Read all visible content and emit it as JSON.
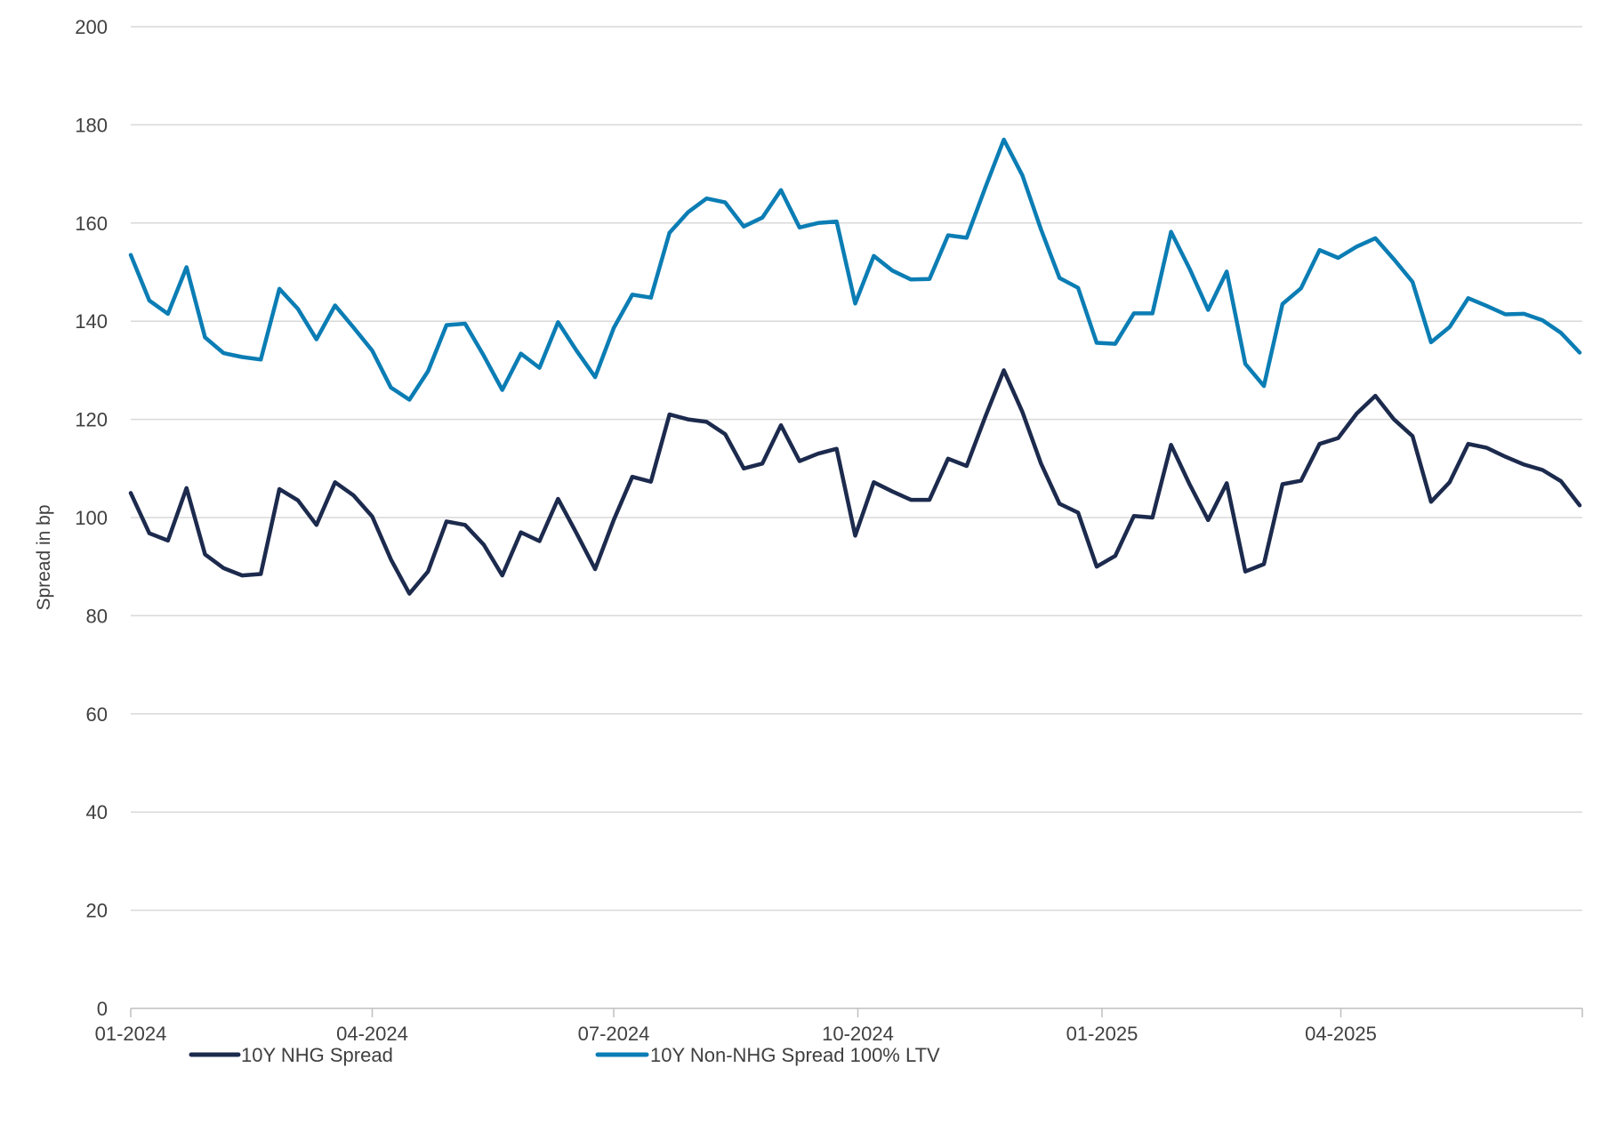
{
  "chart_data": {
    "type": "line",
    "title": "",
    "xlabel": "",
    "ylabel": "Spread in bp",
    "ylim": [
      0,
      200
    ],
    "y_ticks": [
      0,
      20,
      40,
      60,
      80,
      100,
      120,
      140,
      160,
      180,
      200
    ],
    "x_tick_labels": [
      "01-2024",
      "04-2024",
      "07-2024",
      "10-2024",
      "01-2025",
      "04-2025"
    ],
    "x_range": [
      "2024-01-01",
      "2025-07-01"
    ],
    "x_ticks": [
      "2024-01-01",
      "2024-04-01",
      "2024-07-01",
      "2024-10-01",
      "2025-01-01",
      "2025-04-01",
      "2025-07-01"
    ],
    "grid": true,
    "legend_position": "bottom",
    "series": [
      {
        "name": "10Y NHG Spread",
        "color": "#1c2a4d",
        "points": [
          [
            "2024-01-01",
            105.0
          ],
          [
            "2024-01-08",
            96.8
          ],
          [
            "2024-01-15",
            95.3
          ],
          [
            "2024-01-22",
            106.0
          ],
          [
            "2024-01-29",
            92.5
          ],
          [
            "2024-02-05",
            89.7
          ],
          [
            "2024-02-12",
            88.2
          ],
          [
            "2024-02-19",
            88.5
          ],
          [
            "2024-02-26",
            105.8
          ],
          [
            "2024-03-04",
            103.5
          ],
          [
            "2024-03-11",
            98.5
          ],
          [
            "2024-03-18",
            107.2
          ],
          [
            "2024-03-25",
            104.5
          ],
          [
            "2024-04-01",
            100.2
          ],
          [
            "2024-04-08",
            91.5
          ],
          [
            "2024-04-15",
            84.5
          ],
          [
            "2024-04-22",
            89.0
          ],
          [
            "2024-04-29",
            99.2
          ],
          [
            "2024-05-06",
            98.5
          ],
          [
            "2024-05-13",
            94.5
          ],
          [
            "2024-05-20",
            88.2
          ],
          [
            "2024-05-27",
            97.0
          ],
          [
            "2024-06-03",
            95.2
          ],
          [
            "2024-06-10",
            103.8
          ],
          [
            "2024-06-17",
            96.8
          ],
          [
            "2024-06-24",
            89.5
          ],
          [
            "2024-07-01",
            99.5
          ],
          [
            "2024-07-08",
            108.3
          ],
          [
            "2024-07-15",
            107.3
          ],
          [
            "2024-07-22",
            121.0
          ],
          [
            "2024-07-29",
            120.0
          ],
          [
            "2024-08-05",
            119.5
          ],
          [
            "2024-08-12",
            117.0
          ],
          [
            "2024-08-19",
            110.0
          ],
          [
            "2024-08-26",
            111.0
          ],
          [
            "2024-09-02",
            118.8
          ],
          [
            "2024-09-09",
            111.5
          ],
          [
            "2024-09-16",
            113.0
          ],
          [
            "2024-09-23",
            114.0
          ],
          [
            "2024-09-30",
            96.3
          ],
          [
            "2024-10-07",
            107.2
          ],
          [
            "2024-10-14",
            105.3
          ],
          [
            "2024-10-21",
            103.6
          ],
          [
            "2024-10-28",
            103.6
          ],
          [
            "2024-11-04",
            112.0
          ],
          [
            "2024-11-11",
            110.5
          ],
          [
            "2024-11-18",
            120.5
          ],
          [
            "2024-11-25",
            130.0
          ],
          [
            "2024-12-02",
            121.5
          ],
          [
            "2024-12-09",
            111.0
          ],
          [
            "2024-12-16",
            102.8
          ],
          [
            "2024-12-23",
            101.0
          ],
          [
            "2024-12-30",
            90.0
          ],
          [
            "2025-01-06",
            92.2
          ],
          [
            "2025-01-13",
            100.3
          ],
          [
            "2025-01-20",
            100.0
          ],
          [
            "2025-01-27",
            114.8
          ],
          [
            "2025-02-03",
            106.8
          ],
          [
            "2025-02-10",
            99.5
          ],
          [
            "2025-02-17",
            107.0
          ],
          [
            "2025-02-24",
            89.0
          ],
          [
            "2025-03-03",
            90.5
          ],
          [
            "2025-03-10",
            106.8
          ],
          [
            "2025-03-17",
            107.5
          ],
          [
            "2025-03-24",
            115.0
          ],
          [
            "2025-03-31",
            116.2
          ],
          [
            "2025-04-07",
            121.2
          ],
          [
            "2025-04-14",
            124.8
          ],
          [
            "2025-04-21",
            120.0
          ],
          [
            "2025-04-28",
            116.6
          ],
          [
            "2025-05-05",
            103.2
          ],
          [
            "2025-05-12",
            107.2
          ],
          [
            "2025-05-19",
            115.0
          ],
          [
            "2025-05-26",
            114.2
          ],
          [
            "2025-06-02",
            112.4
          ],
          [
            "2025-06-09",
            110.8
          ],
          [
            "2025-06-16",
            109.7
          ],
          [
            "2025-06-23",
            107.4
          ],
          [
            "2025-06-30",
            102.5
          ]
        ]
      },
      {
        "name": "10Y Non-NHG Spread 100% LTV",
        "color": "#0b7db4",
        "points": [
          [
            "2024-01-01",
            153.5
          ],
          [
            "2024-01-08",
            144.2
          ],
          [
            "2024-01-15",
            141.5
          ],
          [
            "2024-01-22",
            151.0
          ],
          [
            "2024-01-29",
            136.7
          ],
          [
            "2024-02-05",
            133.5
          ],
          [
            "2024-02-12",
            132.7
          ],
          [
            "2024-02-19",
            132.2
          ],
          [
            "2024-02-26",
            146.6
          ],
          [
            "2024-03-04",
            142.5
          ],
          [
            "2024-03-11",
            136.3
          ],
          [
            "2024-03-18",
            143.2
          ],
          [
            "2024-03-25",
            138.7
          ],
          [
            "2024-04-01",
            134.0
          ],
          [
            "2024-04-08",
            126.5
          ],
          [
            "2024-04-15",
            124.0
          ],
          [
            "2024-04-22",
            129.8
          ],
          [
            "2024-04-29",
            139.2
          ],
          [
            "2024-05-06",
            139.5
          ],
          [
            "2024-05-13",
            133.0
          ],
          [
            "2024-05-20",
            126.0
          ],
          [
            "2024-05-27",
            133.4
          ],
          [
            "2024-06-03",
            130.5
          ],
          [
            "2024-06-10",
            139.8
          ],
          [
            "2024-06-17",
            134.0
          ],
          [
            "2024-06-24",
            128.6
          ],
          [
            "2024-07-01",
            138.6
          ],
          [
            "2024-07-08",
            145.4
          ],
          [
            "2024-07-15",
            144.8
          ],
          [
            "2024-07-22",
            158.0
          ],
          [
            "2024-07-29",
            162.2
          ],
          [
            "2024-08-05",
            165.0
          ],
          [
            "2024-08-12",
            164.2
          ],
          [
            "2024-08-19",
            159.3
          ],
          [
            "2024-08-26",
            161.1
          ],
          [
            "2024-09-02",
            166.7
          ],
          [
            "2024-09-09",
            159.1
          ],
          [
            "2024-09-16",
            160.0
          ],
          [
            "2024-09-23",
            160.3
          ],
          [
            "2024-09-30",
            143.6
          ],
          [
            "2024-10-07",
            153.3
          ],
          [
            "2024-10-14",
            150.3
          ],
          [
            "2024-10-21",
            148.5
          ],
          [
            "2024-10-28",
            148.6
          ],
          [
            "2024-11-04",
            157.5
          ],
          [
            "2024-11-11",
            157.0
          ],
          [
            "2024-11-18",
            167.2
          ],
          [
            "2024-11-25",
            177.0
          ],
          [
            "2024-12-02",
            169.7
          ],
          [
            "2024-12-09",
            158.7
          ],
          [
            "2024-12-16",
            148.8
          ],
          [
            "2024-12-23",
            146.8
          ],
          [
            "2024-12-30",
            135.6
          ],
          [
            "2025-01-06",
            135.4
          ],
          [
            "2025-01-13",
            141.6
          ],
          [
            "2025-01-20",
            141.6
          ],
          [
            "2025-01-27",
            158.2
          ],
          [
            "2025-02-03",
            150.7
          ],
          [
            "2025-02-10",
            142.3
          ],
          [
            "2025-02-17",
            150.1
          ],
          [
            "2025-02-24",
            131.3
          ],
          [
            "2025-03-03",
            126.8
          ],
          [
            "2025-03-10",
            143.5
          ],
          [
            "2025-03-17",
            146.7
          ],
          [
            "2025-03-24",
            154.5
          ],
          [
            "2025-03-31",
            152.9
          ],
          [
            "2025-04-07",
            155.2
          ],
          [
            "2025-04-14",
            156.9
          ],
          [
            "2025-04-21",
            152.6
          ],
          [
            "2025-04-28",
            148.0
          ],
          [
            "2025-05-05",
            135.7
          ],
          [
            "2025-05-12",
            138.8
          ],
          [
            "2025-05-19",
            144.7
          ],
          [
            "2025-05-26",
            143.1
          ],
          [
            "2025-06-02",
            141.4
          ],
          [
            "2025-06-09",
            141.5
          ],
          [
            "2025-06-16",
            140.2
          ],
          [
            "2025-06-23",
            137.6
          ],
          [
            "2025-06-30",
            133.6
          ]
        ]
      }
    ]
  }
}
